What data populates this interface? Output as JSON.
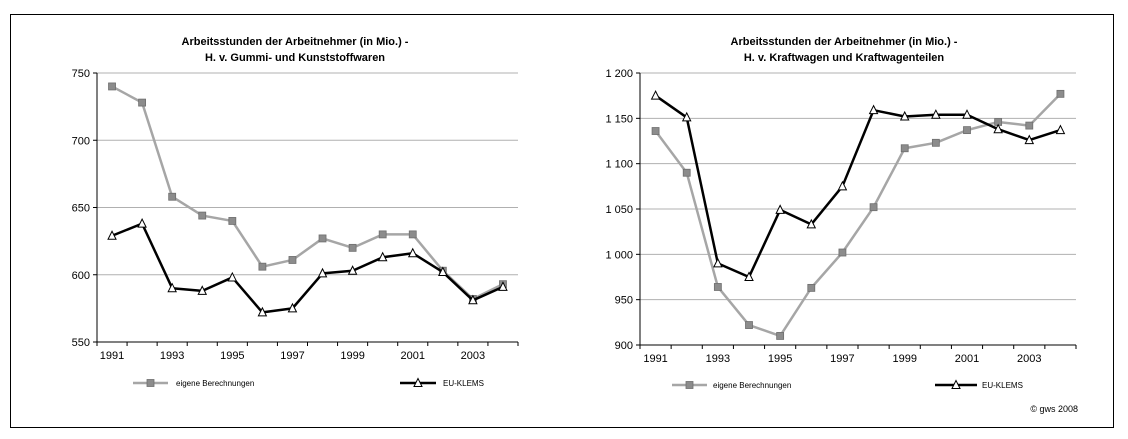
{
  "credit": "© gws 2008",
  "chart_data": [
    {
      "type": "line",
      "title": "Arbeitsstunden der Arbeitnehmer (in Mio.) -",
      "subtitle": "H. v. Gummi- und Kunststoffwaren",
      "x": [
        1991,
        1992,
        1993,
        1994,
        1995,
        1996,
        1997,
        1998,
        1999,
        2000,
        2001,
        2002,
        2003,
        2004
      ],
      "x_tick_labels": [
        "1991",
        "1993",
        "1995",
        "1997",
        "1999",
        "2001",
        "2003"
      ],
      "y_tick_labels": [
        "550",
        "600",
        "650",
        "700",
        "750"
      ],
      "ylim": [
        550,
        750
      ],
      "grid": true,
      "legend_position": "bottom",
      "series": [
        {
          "name": "eigene Berechnungen",
          "color": "#a6a6a6",
          "marker": "square",
          "values": [
            740,
            728,
            658,
            644,
            640,
            606,
            611,
            627,
            620,
            630,
            630,
            603,
            582,
            593
          ]
        },
        {
          "name": "EU-KLEMS",
          "color": "#000000",
          "marker": "triangle",
          "values": [
            629,
            638,
            590,
            588,
            598,
            572,
            575,
            601,
            603,
            613,
            616,
            602,
            581,
            591
          ]
        }
      ]
    },
    {
      "type": "line",
      "title": "Arbeitsstunden der Arbeitnehmer (in Mio.) -",
      "subtitle": "H. v. Kraftwagen und Kraftwagenteilen",
      "x": [
        1991,
        1992,
        1993,
        1994,
        1995,
        1996,
        1997,
        1998,
        1999,
        2000,
        2001,
        2002,
        2003,
        2004
      ],
      "x_tick_labels": [
        "1991",
        "1993",
        "1995",
        "1997",
        "1999",
        "2001",
        "2003"
      ],
      "y_tick_labels": [
        "900",
        "950",
        "1 000",
        "1 050",
        "1 100",
        "1 150",
        "1 200"
      ],
      "ylim": [
        900,
        1200
      ],
      "grid": true,
      "legend_position": "bottom",
      "series": [
        {
          "name": "eigene Berechnungen",
          "color": "#a6a6a6",
          "marker": "square",
          "values": [
            1136,
            1090,
            964,
            922,
            910,
            963,
            1002,
            1052,
            1117,
            1123,
            1137,
            1146,
            1142,
            1177
          ]
        },
        {
          "name": "EU-KLEMS",
          "color": "#000000",
          "marker": "triangle",
          "values": [
            1175,
            1151,
            990,
            975,
            1049,
            1033,
            1075,
            1159,
            1152,
            1154,
            1154,
            1138,
            1126,
            1137
          ]
        }
      ]
    }
  ]
}
